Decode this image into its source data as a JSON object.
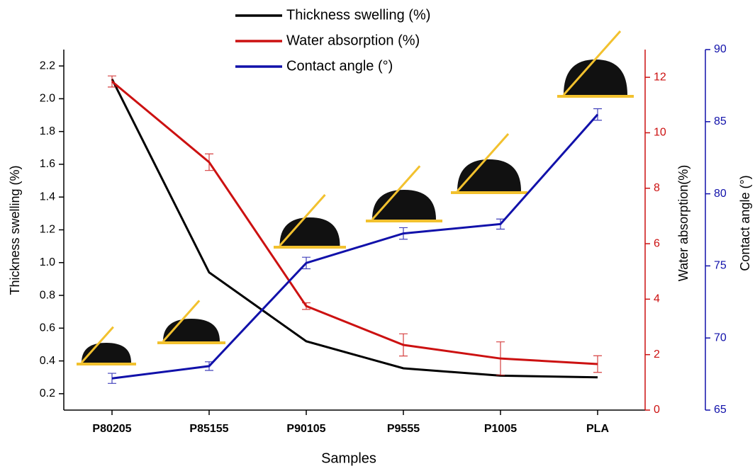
{
  "chart_data": {
    "type": "line",
    "categories": [
      "P80205",
      "P85155",
      "P90105",
      "P9555",
      "P1005",
      "PLA"
    ],
    "x_label": "Samples",
    "y_label": "Thickness swelling (%)",
    "y2_label": "Water absorption(%)",
    "y3_label": "Contact angle (°)",
    "ylim": [
      0.1,
      2.3
    ],
    "yticks": [
      0.2,
      0.4,
      0.6,
      0.8,
      {
        "value": 1.0,
        "label": "1.0"
      },
      1.2,
      1.4,
      1.6,
      1.8,
      {
        "value": 2.0,
        "label": "2.0"
      },
      2.2
    ],
    "y2lim": [
      0,
      13
    ],
    "y2ticks": [
      0,
      2,
      4,
      6,
      8,
      10,
      12
    ],
    "y3lim": [
      65,
      90
    ],
    "y3ticks": [
      65,
      70,
      75,
      80,
      85,
      90
    ],
    "series": [
      {
        "name": "Thickness swelling (%)",
        "color": "#000000",
        "axis": "y",
        "values": [
          2.12,
          0.94,
          0.52,
          0.355,
          0.31,
          0.3
        ]
      },
      {
        "name": "Water absorption (%)",
        "color": "#cc1111",
        "axis": "y2",
        "values": [
          11.85,
          8.94,
          3.75,
          2.35,
          1.86,
          1.66
        ],
        "errors": [
          0.2,
          0.3,
          0.12,
          0.4,
          0.6,
          0.3
        ]
      },
      {
        "name": "Contact angle (°)",
        "color": "#1111aa",
        "axis": "y3",
        "values": [
          67.2,
          68.05,
          75.2,
          77.25,
          77.9,
          85.5
        ],
        "errors": [
          0.35,
          0.3,
          0.4,
          0.4,
          0.35,
          0.4
        ]
      }
    ]
  }
}
